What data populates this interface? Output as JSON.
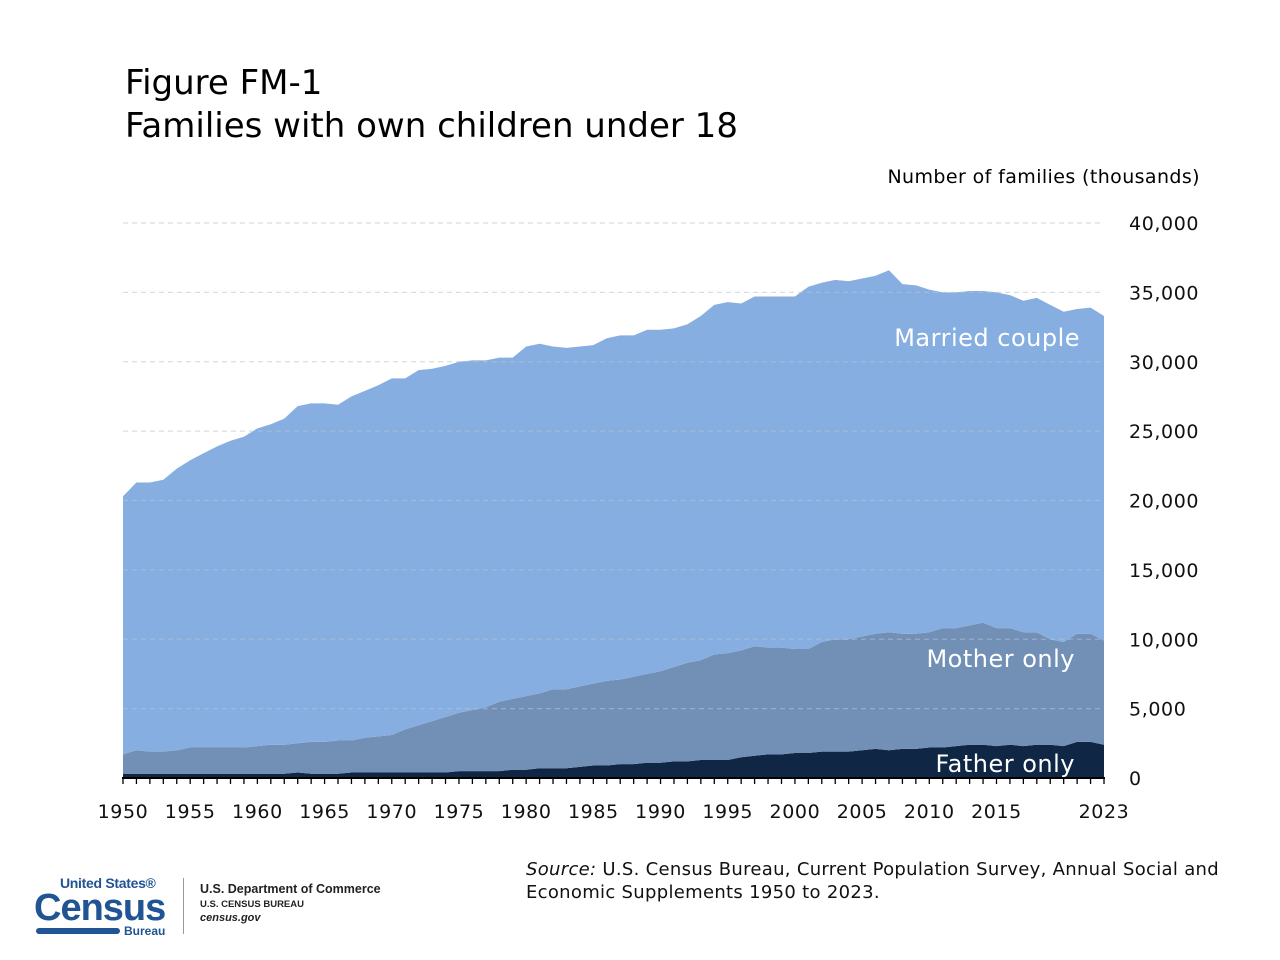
{
  "chart_data": {
    "type": "area",
    "stacked": true,
    "title": "Figure FM-1",
    "subtitle": "Families with own children under 18",
    "ylabel": "Number of families (thousands)",
    "xlabel": "",
    "xlim": [
      1950,
      2023
    ],
    "ylim": [
      0,
      40000
    ],
    "grid": true,
    "y_ticks": [
      0,
      5000,
      10000,
      15000,
      20000,
      25000,
      30000,
      35000,
      40000
    ],
    "y_tick_labels": [
      "0",
      "5,000",
      "10,000",
      "15,000",
      "20,000",
      "25,000",
      "30,000",
      "35,000",
      "40,000"
    ],
    "x_ticks": [
      1950,
      1955,
      1960,
      1965,
      1970,
      1975,
      1980,
      1985,
      1990,
      1995,
      2000,
      2005,
      2010,
      2015,
      2023
    ],
    "x_tick_labels": [
      "1950",
      "1955",
      "1960",
      "1965",
      "1970",
      "1975",
      "1980",
      "1985",
      "1990",
      "1995",
      "2000",
      "2005",
      "2010",
      "2015",
      "2023"
    ],
    "x_start": 1950,
    "series": [
      {
        "name": "Father only",
        "color": "#0f2645",
        "label_color": "#ffffff",
        "values": [
          300,
          300,
          300,
          300,
          300,
          300,
          300,
          300,
          300,
          300,
          300,
          300,
          300,
          400,
          300,
          300,
          300,
          400,
          400,
          400,
          400,
          400,
          400,
          400,
          400,
          500,
          500,
          500,
          500,
          600,
          600,
          700,
          700,
          700,
          800,
          900,
          900,
          1000,
          1000,
          1100,
          1100,
          1200,
          1200,
          1300,
          1300,
          1300,
          1500,
          1600,
          1700,
          1700,
          1800,
          1800,
          1900,
          1900,
          1900,
          2000,
          2100,
          2000,
          2100,
          2100,
          2200,
          2200,
          2300,
          2400,
          2400,
          2300,
          2400,
          2300,
          2400,
          2400,
          2300,
          2600,
          2600,
          2400
        ]
      },
      {
        "name": "Mother only",
        "color": "#7290b5",
        "label_color": "#ffffff",
        "values": [
          1400,
          1700,
          1600,
          1600,
          1700,
          1900,
          1900,
          1900,
          1900,
          1900,
          2000,
          2100,
          2100,
          2100,
          2300,
          2300,
          2400,
          2300,
          2500,
          2600,
          2700,
          3100,
          3400,
          3700,
          4000,
          4200,
          4400,
          4600,
          5000,
          5100,
          5300,
          5400,
          5700,
          5700,
          5800,
          5900,
          6100,
          6100,
          6300,
          6400,
          6600,
          6800,
          7100,
          7200,
          7600,
          7700,
          7700,
          7900,
          7700,
          7700,
          7500,
          7500,
          7900,
          8100,
          8100,
          8200,
          8300,
          8500,
          8300,
          8300,
          8300,
          8600,
          8500,
          8600,
          8800,
          8500,
          8400,
          8200,
          8100,
          7600,
          7500,
          7800,
          7800,
          7500
        ]
      },
      {
        "name": "Married couple",
        "color": "#87aee0",
        "label_color": "#ffffff",
        "values": [
          18600,
          19300,
          19400,
          19600,
          20300,
          20700,
          21200,
          21700,
          22100,
          22400,
          22900,
          23100,
          23500,
          24300,
          24400,
          24400,
          24200,
          24800,
          25000,
          25300,
          25700,
          25300,
          25600,
          25400,
          25300,
          25300,
          25200,
          25000,
          24800,
          24600,
          25200,
          25200,
          24700,
          24600,
          24500,
          24400,
          24700,
          24800,
          24600,
          24800,
          24600,
          24400,
          24400,
          24800,
          25200,
          25300,
          25000,
          25200,
          25300,
          25300,
          25400,
          26100,
          25900,
          25900,
          25800,
          25800,
          25800,
          26100,
          25200,
          25100,
          24700,
          24200,
          24200,
          24100,
          23900,
          24200,
          24000,
          23900,
          24100,
          24100,
          23800,
          23400,
          23500,
          23400
        ]
      }
    ]
  },
  "source": {
    "label": "Source:",
    "text": "U.S. Census Bureau, Current Population Survey, Annual Social and Economic Supplements 1950 to 2023."
  },
  "footer": {
    "logo_top": "United States®",
    "logo_main": "Census",
    "logo_bottom": "Bureau",
    "dept": "U.S. Department of Commerce",
    "bureau": "U.S. CENSUS BUREAU",
    "site": "census.gov"
  }
}
